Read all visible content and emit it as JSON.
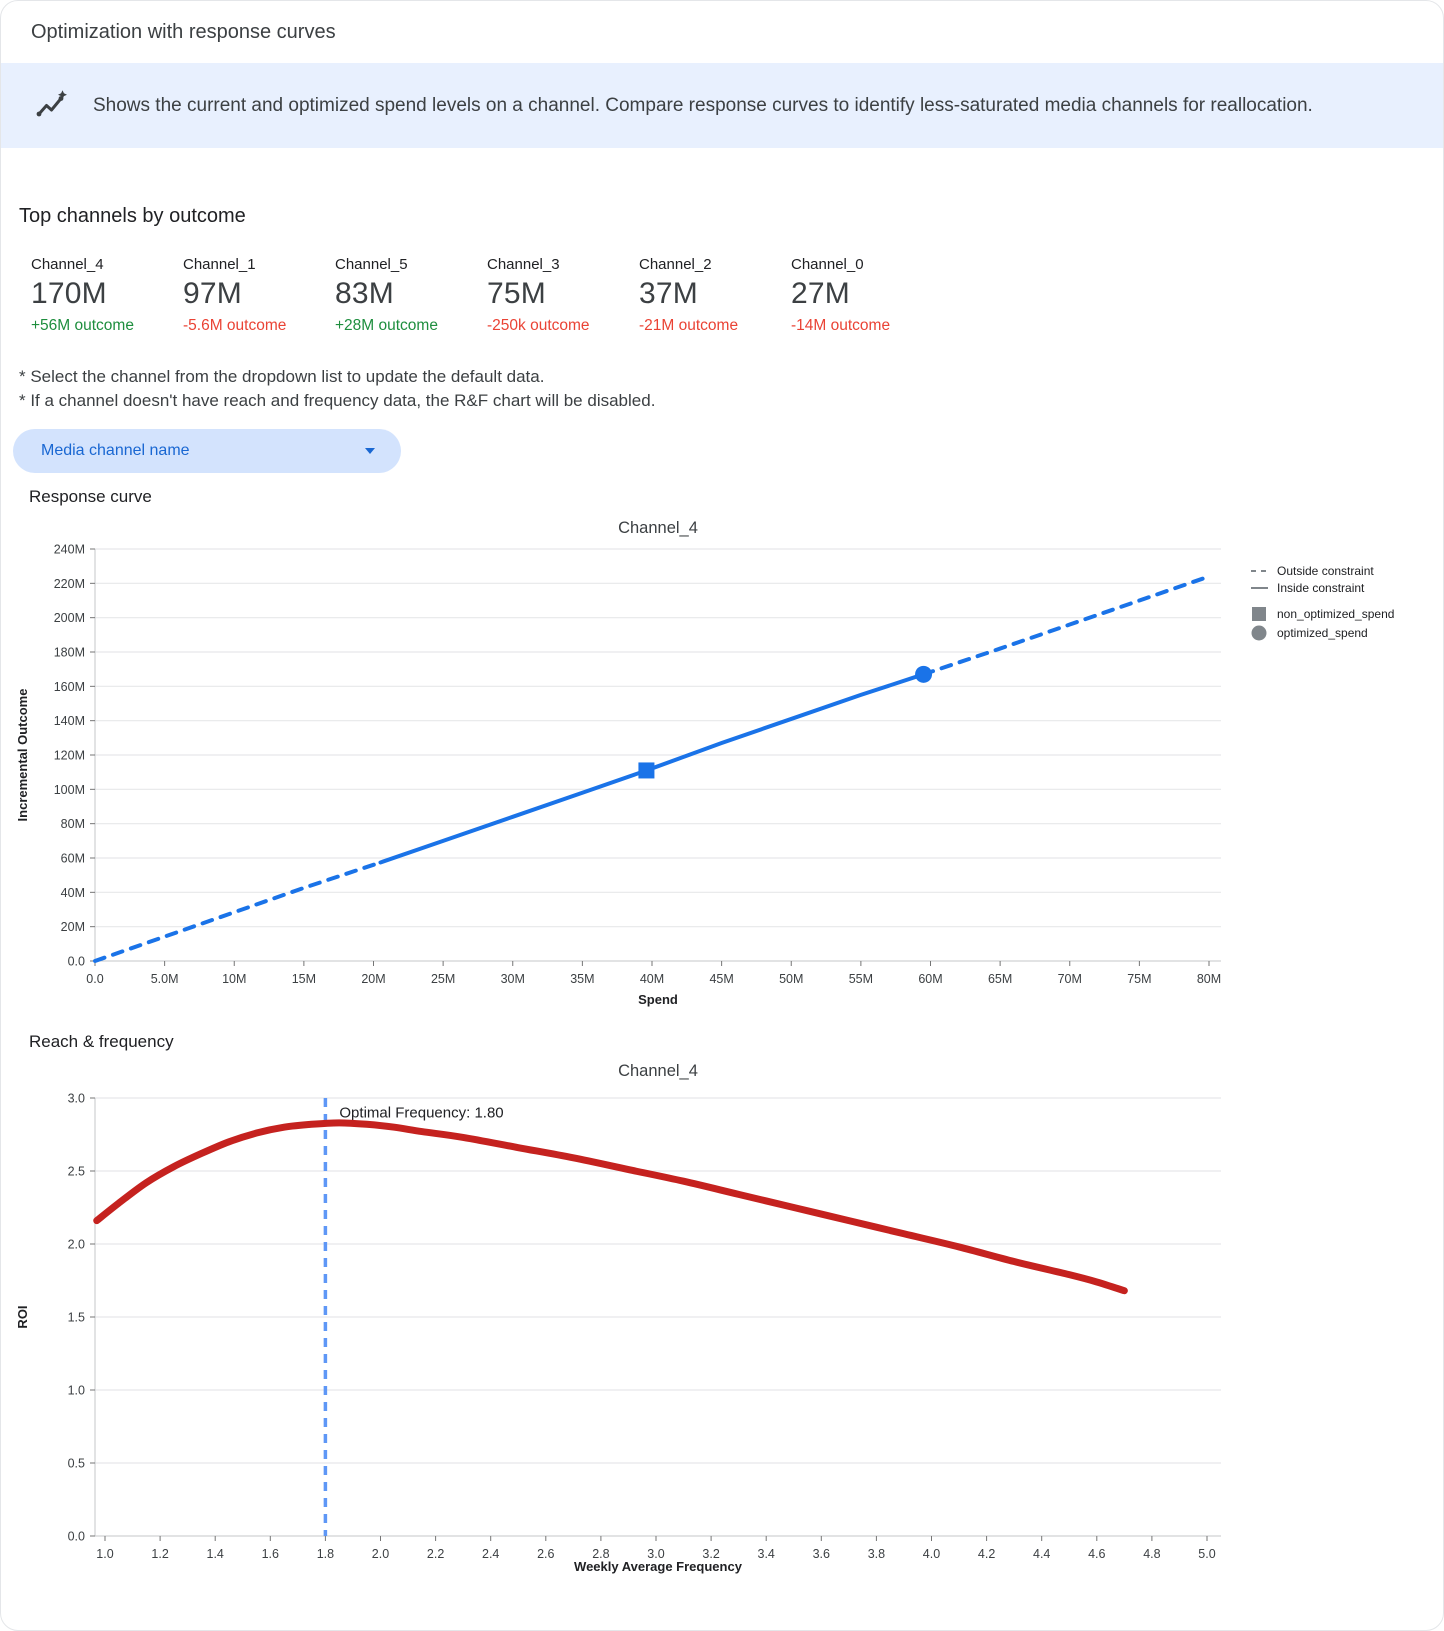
{
  "header": {
    "title": "Optimization with response curves"
  },
  "banner": {
    "icon": "trend-sparkle-icon",
    "text": "Shows the current and optimized spend levels on a channel. Compare response curves to identify less-saturated media channels for reallocation."
  },
  "top_channels": {
    "heading": "Top channels by outcome",
    "channels": [
      {
        "name": "Channel_4",
        "value": "170M",
        "outcome": "+56M outcome",
        "trend": "positive"
      },
      {
        "name": "Channel_1",
        "value": "97M",
        "outcome": "-5.6M outcome",
        "trend": "negative"
      },
      {
        "name": "Channel_5",
        "value": "83M",
        "outcome": "+28M outcome",
        "trend": "positive"
      },
      {
        "name": "Channel_3",
        "value": "75M",
        "outcome": "-250k outcome",
        "trend": "negative"
      },
      {
        "name": "Channel_2",
        "value": "37M",
        "outcome": "-21M outcome",
        "trend": "negative"
      },
      {
        "name": "Channel_0",
        "value": "27M",
        "outcome": "-14M outcome",
        "trend": "negative"
      }
    ]
  },
  "notes": [
    "* Select the channel from the dropdown list to update the default data.",
    "* If a channel doesn't have reach and frequency data, the R&F chart will be disabled."
  ],
  "dropdown": {
    "label": "Media channel name"
  },
  "sections": {
    "response_curve": "Response curve",
    "reach_frequency": "Reach & frequency"
  },
  "colors": {
    "accent_blue": "#1a73e8",
    "vline_blue": "#5e97f6",
    "curve_red": "#c5221f",
    "positive_green": "#1e8e3e",
    "negative_red": "#ea4335",
    "banner_bg": "#e8f0fe",
    "pill_bg": "#d3e3fd",
    "pill_text": "#1967d2",
    "legend_gray": "#80868b"
  },
  "chart_data": [
    {
      "id": "response-chart",
      "type": "line",
      "title": "Channel_4",
      "xlabel": "Spend",
      "ylabel": "Incremental Outcome",
      "xlim": [
        0,
        80
      ],
      "ylim": [
        0,
        240
      ],
      "grid": "horizontal",
      "legend_position": "right",
      "xticks": [
        [
          0,
          "0.0"
        ],
        [
          5,
          "5.0M"
        ],
        [
          10,
          "10M"
        ],
        [
          15,
          "15M"
        ],
        [
          20,
          "20M"
        ],
        [
          25,
          "25M"
        ],
        [
          30,
          "30M"
        ],
        [
          35,
          "35M"
        ],
        [
          40,
          "40M"
        ],
        [
          45,
          "45M"
        ],
        [
          50,
          "50M"
        ],
        [
          55,
          "55M"
        ],
        [
          60,
          "60M"
        ],
        [
          65,
          "65M"
        ],
        [
          70,
          "70M"
        ],
        [
          75,
          "75M"
        ],
        [
          80,
          "80M"
        ]
      ],
      "yticks": [
        [
          0,
          "0.0"
        ],
        [
          20,
          "20M"
        ],
        [
          40,
          "40M"
        ],
        [
          60,
          "60M"
        ],
        [
          80,
          "80M"
        ],
        [
          100,
          "100M"
        ],
        [
          120,
          "120M"
        ],
        [
          140,
          "140M"
        ],
        [
          160,
          "160M"
        ],
        [
          180,
          "180M"
        ],
        [
          200,
          "200M"
        ],
        [
          220,
          "220M"
        ],
        [
          240,
          "240M"
        ]
      ],
      "series": [
        {
          "name": "outside-constraint-lower",
          "style": "dashed",
          "color": "#1a73e8",
          "width": 4,
          "points": [
            [
              0,
              0
            ],
            [
              5,
              14.2
            ],
            [
              10,
              28.4
            ],
            [
              15,
              42.6
            ],
            [
              20.5,
              57.4
            ]
          ]
        },
        {
          "name": "inside-constraint",
          "style": "solid",
          "color": "#1a73e8",
          "width": 4,
          "points": [
            [
              20.5,
              57.4
            ],
            [
              25,
              70
            ],
            [
              30,
              84
            ],
            [
              35,
              98
            ],
            [
              39.6,
              111
            ],
            [
              45,
              127
            ],
            [
              50,
              141
            ],
            [
              55,
              155
            ],
            [
              59.5,
              167
            ]
          ]
        },
        {
          "name": "outside-constraint-upper",
          "style": "dashed",
          "color": "#1a73e8",
          "width": 4,
          "points": [
            [
              59.5,
              167
            ],
            [
              65,
              182
            ],
            [
              70,
              196
            ],
            [
              75,
              210
            ],
            [
              80,
              224
            ]
          ]
        }
      ],
      "markers": [
        {
          "name": "non_optimized_spend",
          "shape": "square",
          "x": 39.6,
          "y": 111,
          "color": "#1a73e8"
        },
        {
          "name": "optimized_spend",
          "shape": "circle",
          "x": 59.5,
          "y": 167,
          "color": "#1a73e8"
        }
      ],
      "legend": [
        {
          "label": "Outside constraint",
          "swatch": "dashed-line"
        },
        {
          "label": "Inside constraint",
          "swatch": "solid-line"
        },
        {
          "label": "non_optimized_spend",
          "swatch": "square"
        },
        {
          "label": "optimized_spend",
          "swatch": "circle"
        }
      ]
    },
    {
      "id": "rf-chart",
      "type": "line",
      "title": "Channel_4",
      "xlabel": "Weekly Average Frequency",
      "ylabel": "ROI",
      "xlim": [
        1.0,
        5.0
      ],
      "ylim": [
        0,
        3.0
      ],
      "grid": "horizontal",
      "xticks": [
        [
          1.0,
          "1.0"
        ],
        [
          1.2,
          "1.2"
        ],
        [
          1.4,
          "1.4"
        ],
        [
          1.6,
          "1.6"
        ],
        [
          1.8,
          "1.8"
        ],
        [
          2.0,
          "2.0"
        ],
        [
          2.2,
          "2.2"
        ],
        [
          2.4,
          "2.4"
        ],
        [
          2.6,
          "2.6"
        ],
        [
          2.8,
          "2.8"
        ],
        [
          3.0,
          "3.0"
        ],
        [
          3.2,
          "3.2"
        ],
        [
          3.4,
          "3.4"
        ],
        [
          3.6,
          "3.6"
        ],
        [
          3.8,
          "3.8"
        ],
        [
          4.0,
          "4.0"
        ],
        [
          4.2,
          "4.2"
        ],
        [
          4.4,
          "4.4"
        ],
        [
          4.6,
          "4.6"
        ],
        [
          4.8,
          "4.8"
        ],
        [
          5.0,
          "5.0"
        ]
      ],
      "yticks": [
        [
          0,
          "0.0"
        ],
        [
          0.5,
          "0.5"
        ],
        [
          1.0,
          "1.0"
        ],
        [
          1.5,
          "1.5"
        ],
        [
          2.0,
          "2.0"
        ],
        [
          2.5,
          "2.5"
        ],
        [
          3.0,
          "3.0"
        ]
      ],
      "series": [
        {
          "name": "roi-curve",
          "style": "solid",
          "color": "#c5221f",
          "width": 7,
          "smooth": true,
          "points": [
            [
              0.97,
              2.16
            ],
            [
              1.05,
              2.28
            ],
            [
              1.15,
              2.42
            ],
            [
              1.25,
              2.53
            ],
            [
              1.35,
              2.62
            ],
            [
              1.45,
              2.7
            ],
            [
              1.55,
              2.76
            ],
            [
              1.65,
              2.8
            ],
            [
              1.75,
              2.82
            ],
            [
              1.85,
              2.83
            ],
            [
              1.95,
              2.82
            ],
            [
              2.05,
              2.8
            ],
            [
              2.15,
              2.77
            ],
            [
              2.3,
              2.73
            ],
            [
              2.5,
              2.66
            ],
            [
              2.7,
              2.59
            ],
            [
              2.9,
              2.51
            ],
            [
              3.1,
              2.43
            ],
            [
              3.3,
              2.34
            ],
            [
              3.5,
              2.25
            ],
            [
              3.7,
              2.16
            ],
            [
              3.9,
              2.07
            ],
            [
              4.1,
              1.98
            ],
            [
              4.3,
              1.88
            ],
            [
              4.5,
              1.79
            ],
            [
              4.6,
              1.74
            ],
            [
              4.7,
              1.68
            ]
          ]
        }
      ],
      "vline": {
        "x": 1.8,
        "style": "dashed",
        "color": "#5e97f6",
        "label": "Optimal Frequency: 1.80"
      }
    }
  ]
}
